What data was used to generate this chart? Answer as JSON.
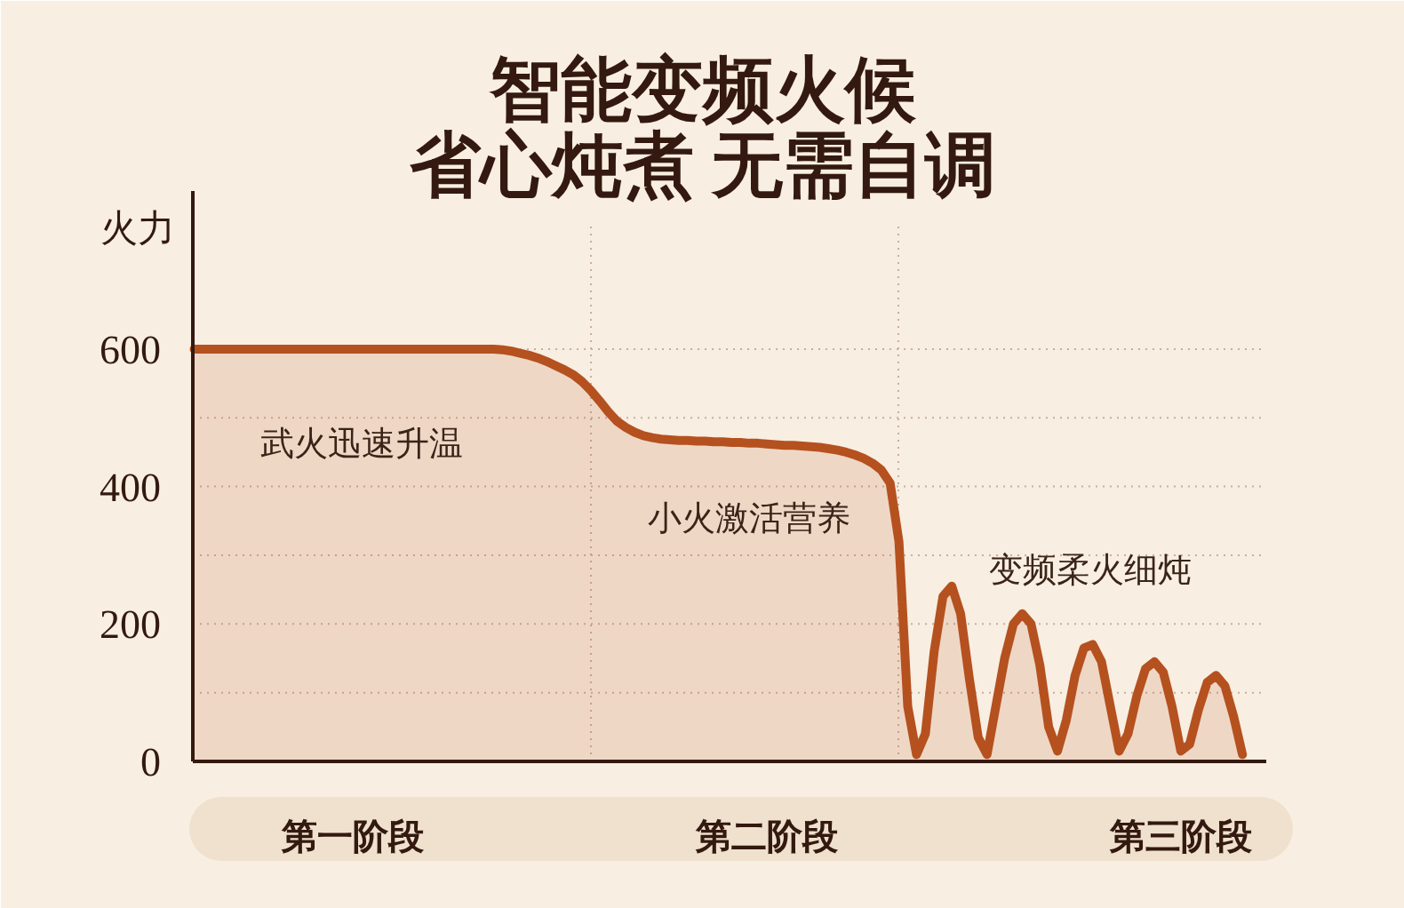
{
  "chart_data": {
    "type": "area",
    "title": "智能变频火候",
    "subtitle": "省心炖煮 无需自调",
    "ylabel": "火力",
    "categories": [
      null,
      null,
      null,
      null,
      null,
      null,
      null,
      null,
      null,
      null,
      null,
      null,
      null,
      null,
      null,
      null,
      null,
      null,
      "第一阶段",
      null,
      null,
      null,
      null,
      null,
      null,
      null,
      null,
      null,
      null,
      null,
      null,
      null,
      null,
      null,
      null,
      null,
      null,
      null,
      null,
      null,
      null,
      null,
      null,
      null,
      null,
      null,
      null,
      null,
      null,
      null,
      null,
      null,
      null,
      null,
      null,
      null,
      null,
      null,
      null,
      null,
      null,
      null,
      null,
      null,
      null,
      "第二阶段",
      null,
      null,
      null,
      null,
      null,
      null,
      null,
      null,
      null,
      null,
      null,
      null,
      null,
      null,
      null,
      null,
      null,
      null,
      null,
      null,
      null,
      null,
      null,
      null,
      null,
      null,
      null,
      null,
      null,
      null,
      null,
      null,
      null,
      null,
      null,
      null,
      null,
      null,
      null,
      null,
      null,
      null,
      null,
      null,
      null,
      null,
      "第三阶段",
      null,
      null,
      null,
      null,
      null,
      null,
      null
    ],
    "series": [
      {
        "color": "#b5511f",
        "values": [
          600,
          600,
          600,
          600,
          600,
          600,
          600,
          600,
          600,
          600,
          600,
          600,
          600,
          600,
          600,
          600,
          600,
          600,
          600,
          600,
          600,
          600,
          600,
          600,
          600,
          600,
          600,
          600,
          600,
          600,
          600,
          600,
          600,
          600,
          600,
          599,
          597,
          594,
          591,
          587,
          582,
          576,
          570,
          563,
          553,
          540,
          525,
          509,
          495,
          486,
          479,
          474,
          471,
          469,
          468,
          467,
          467,
          466,
          466,
          465,
          465,
          464,
          464,
          463,
          463,
          462,
          461,
          460,
          460,
          459,
          458,
          457,
          455,
          453,
          450,
          446,
          441,
          434,
          424,
          405,
          320,
          80,
          10,
          40,
          160,
          240,
          255,
          215,
          120,
          35,
          10,
          80,
          150,
          200,
          215,
          200,
          140,
          50,
          15,
          60,
          125,
          165,
          170,
          145,
          80,
          15,
          40,
          95,
          135,
          145,
          130,
          80,
          15,
          25,
          75,
          115,
          125,
          110,
          65,
          10
        ]
      }
    ],
    "ylim": [
      0,
      830
    ],
    "yticks": [
      0,
      {
        "value": 100,
        "label": null
      },
      200,
      {
        "value": 300,
        "label": null
      },
      400,
      {
        "value": 500,
        "label": null
      },
      600
    ],
    "grid": "y",
    "annotations": [
      "武火迅速升温",
      "小火激活营养",
      "变频柔火细炖"
    ]
  }
}
